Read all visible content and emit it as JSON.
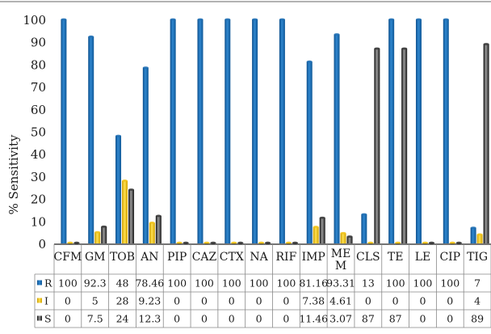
{
  "chart_data": {
    "type": "bar",
    "ylabel": "% Sensitivity",
    "ylim": [
      0,
      100
    ],
    "yticks": [
      0,
      10,
      20,
      30,
      40,
      50,
      60,
      70,
      80,
      90,
      100
    ],
    "categories": [
      "CFM",
      "GM",
      "TOB",
      "AN",
      "PIP",
      "CAZ",
      "CTX",
      "NA",
      "RIF",
      "IMP",
      "MEM",
      "CLS",
      "TE",
      "LE",
      "CIP",
      "TIG"
    ],
    "category_display": [
      "CFM",
      "GM",
      "TOB",
      "AN",
      "PIP",
      "CAZ",
      "CTX",
      "NA",
      "RIF",
      "IMP",
      "ME\nM",
      "CLS",
      "TE",
      "LE",
      "CIP",
      "TIG"
    ],
    "series": [
      {
        "name": "R",
        "color": "#1f6fb4",
        "values": [
          100,
          92.3,
          48,
          78.46,
          100,
          100,
          100,
          100,
          100,
          81.16,
          93.31,
          13,
          100,
          100,
          100,
          7
        ],
        "labels": [
          "100",
          "92.3",
          "48",
          "78.46",
          "100",
          "100",
          "100",
          "100",
          "100",
          "81.16",
          "93.31",
          "13",
          "100",
          "100",
          "100",
          "7"
        ]
      },
      {
        "name": "I",
        "color": "#f2c318",
        "values": [
          0,
          5,
          28,
          9.23,
          0,
          0,
          0,
          0,
          0,
          7.38,
          4.61,
          0,
          0,
          0,
          0,
          4
        ],
        "labels": [
          "0",
          "5",
          "28",
          "9.23",
          "0",
          "0",
          "0",
          "0",
          "0",
          "7.38",
          "4.61",
          "0",
          "0",
          "0",
          "0",
          "4"
        ]
      },
      {
        "name": "S",
        "color": "#3a3a3a",
        "values": [
          0,
          7.5,
          24,
          12.3,
          0,
          0,
          0,
          0,
          0,
          11.46,
          3.07,
          87,
          87,
          0,
          0,
          89
        ],
        "labels": [
          "0",
          "7.5",
          "24",
          "12.3",
          "0",
          "0",
          "0",
          "0",
          "0",
          "11.46",
          "3.07",
          "87",
          "87",
          "0",
          "0",
          "89"
        ]
      }
    ],
    "grid": false,
    "legend": "data-table"
  }
}
